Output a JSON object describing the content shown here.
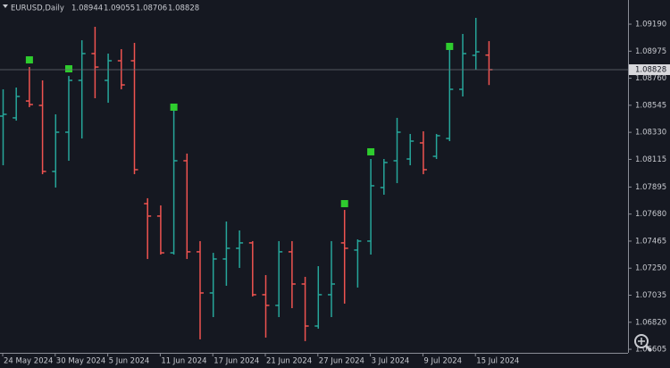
{
  "chart_data": {
    "type": "ohlc",
    "symbol": "EURUSD,Daily",
    "categories": [
      "24 May 2024",
      null,
      null,
      null,
      "30 May 2024",
      null,
      null,
      null,
      "5 Jun 2024",
      null,
      null,
      null,
      "11 Jun 2024",
      null,
      null,
      null,
      "17 Jun 2024",
      null,
      null,
      null,
      "21 Jun 2024",
      null,
      null,
      null,
      "27 Jun 2024",
      null,
      null,
      null,
      "3 Jul 2024",
      null,
      null,
      null,
      "9 Jul 2024",
      null,
      null,
      null,
      "15 Jul 2024",
      null
    ],
    "open": [
      1.08459,
      1.08445,
      1.08579,
      1.08544,
      1.08019,
      1.08331,
      1.08743,
      1.08956,
      1.08743,
      1.08899,
      1.08899,
      1.07763,
      1.07664,
      1.07372,
      1.08104,
      1.0738,
      1.07053,
      1.07323,
      1.07408,
      1.07451,
      1.07039,
      1.06954,
      1.0738,
      1.07124,
      1.0679,
      1.07039,
      1.07451,
      1.07394,
      1.07465,
      1.07891,
      1.08104,
      1.08118,
      1.08246,
      1.08139,
      1.08281,
      1.08672,
      1.08942,
      1.08944
    ],
    "high": [
      1.08672,
      1.08686,
      1.08849,
      1.08743,
      1.08473,
      1.08778,
      1.09062,
      1.09169,
      1.08956,
      1.08991,
      1.09041,
      1.07806,
      1.07749,
      1.0853,
      1.08161,
      1.07465,
      1.07372,
      1.07621,
      1.0755,
      1.07465,
      1.07195,
      1.07465,
      1.07465,
      1.07181,
      1.07266,
      1.07465,
      1.07713,
      1.07479,
      1.08118,
      1.08118,
      1.08445,
      1.08317,
      1.08338,
      1.08317,
      1.08991,
      1.09112,
      1.0924,
      1.09055
    ],
    "low": [
      1.08068,
      1.08423,
      1.0853,
      1.07997,
      1.07891,
      1.08104,
      1.08281,
      1.08601,
      1.08565,
      1.08672,
      1.07997,
      1.07323,
      1.07358,
      1.07358,
      1.07323,
      1.06684,
      1.06861,
      1.0711,
      1.07252,
      1.07025,
      1.06698,
      1.06861,
      1.06932,
      1.0667,
      1.06769,
      1.06861,
      1.06968,
      1.07096,
      1.07358,
      1.07834,
      1.07926,
      1.08068,
      1.07997,
      1.08118,
      1.0826,
      1.08615,
      1.08828,
      1.08706
    ],
    "close": [
      1.08473,
      1.08615,
      1.08551,
      1.08019,
      1.08331,
      1.08743,
      1.08956,
      1.08849,
      1.08899,
      1.08707,
      1.08033,
      1.07664,
      1.07372,
      1.08104,
      1.0738,
      1.07053,
      1.07323,
      1.07408,
      1.07451,
      1.07039,
      1.06954,
      1.0738,
      1.07124,
      1.0679,
      1.07039,
      1.07124,
      1.07408,
      1.07465,
      1.07905,
      1.0809,
      1.08331,
      1.0826,
      1.08033,
      1.08303,
      1.08672,
      1.08956,
      1.0897,
      1.08828
    ],
    "markers": [
      null,
      null,
      1.08906,
      null,
      null,
      1.08835,
      null,
      null,
      null,
      null,
      null,
      null,
      null,
      1.0853,
      null,
      null,
      null,
      null,
      null,
      null,
      null,
      null,
      null,
      null,
      null,
      null,
      1.07763,
      null,
      1.08175,
      null,
      null,
      null,
      null,
      null,
      1.09013,
      null,
      null,
      null
    ],
    "up_color": "#26a69a",
    "down_color": "#ef5350",
    "marker_color": "#2ecc2e",
    "ylim": [
      1.06577,
      1.09382
    ],
    "yticks": [
      {
        "value": 1.0919,
        "label": "1.09190"
      },
      1.08975,
      {
        "value": 1.0876,
        "label": "1.08760"
      },
      1.08545,
      {
        "value": 1.0833,
        "label": "1.08330"
      },
      1.08115,
      1.07895,
      {
        "value": 1.0768,
        "label": "1.07680"
      },
      1.07465,
      {
        "value": 1.0725,
        "label": "1.07250"
      },
      1.07035,
      {
        "value": 1.0682,
        "label": "1.06820"
      },
      1.06605
    ]
  }
}
